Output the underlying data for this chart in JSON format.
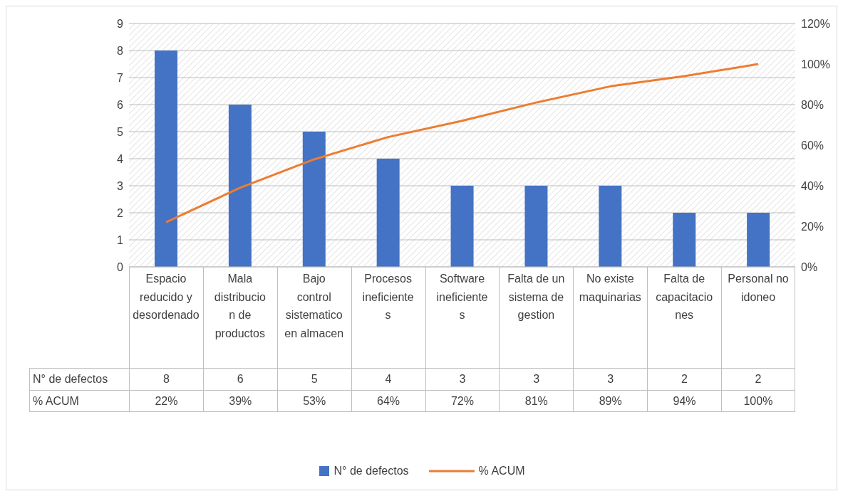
{
  "chart_data": {
    "type": "bar",
    "categories": [
      "Espacio reducido y desordenado",
      "Mala distribucion de productos",
      "Bajo control sistematico en almacen",
      "Procesos ineficientes",
      "Software ineficientes",
      "Falta de un sistema de gestion",
      "No existe maquinarias",
      "Falta de capacitaciones",
      "Personal no idoneo"
    ],
    "series": [
      {
        "name": "N° de defectos",
        "color": "#4472c4",
        "values": [
          8,
          6,
          5,
          4,
          3,
          3,
          3,
          2,
          2
        ],
        "value_labels": [
          "8",
          "6",
          "5",
          "4",
          "3",
          "3",
          "3",
          "2",
          "2"
        ]
      },
      {
        "name": "% ACUM",
        "type": "line",
        "axis": "y2",
        "color": "#ed7d31",
        "values": [
          22,
          39,
          53,
          64,
          72,
          81,
          89,
          94,
          100
        ],
        "value_labels": [
          "22%",
          "39%",
          "53%",
          "64%",
          "72%",
          "81%",
          "89%",
          "94%",
          "100%"
        ]
      }
    ],
    "ylim": [
      0,
      9
    ],
    "yticks": [
      0,
      1,
      2,
      3,
      4,
      5,
      6,
      7,
      8,
      9
    ],
    "y2lim": [
      0,
      120
    ],
    "y2ticks": [
      {
        "value": 0,
        "label": "0%"
      },
      {
        "value": 20,
        "label": "20%"
      },
      {
        "value": 40,
        "label": "40%"
      },
      {
        "value": 60,
        "label": "60%"
      },
      {
        "value": 80,
        "label": "80%"
      },
      {
        "value": 100,
        "label": "100%"
      },
      {
        "value": 120,
        "label": "120%"
      }
    ],
    "grid": "y",
    "legend": "bottom",
    "line_style": "solid"
  }
}
